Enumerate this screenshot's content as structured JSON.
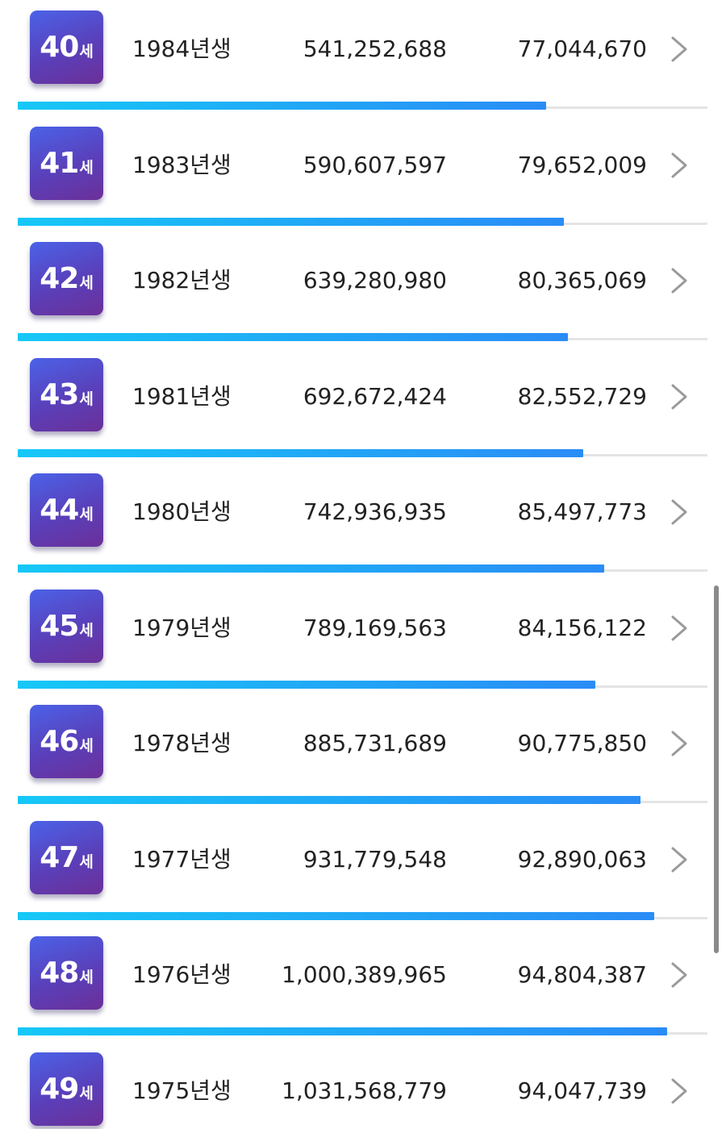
{
  "rows": [
    {
      "age": "40",
      "unit": "세",
      "birth_year": "1984년생",
      "total": "541,252,688",
      "annual": "77,044,670",
      "progress": 0.766
    },
    {
      "age": "41",
      "unit": "세",
      "birth_year": "1983년생",
      "total": "590,607,597",
      "annual": "79,652,009",
      "progress": 0.792
    },
    {
      "age": "42",
      "unit": "세",
      "birth_year": "1982년생",
      "total": "639,280,980",
      "annual": "80,365,069",
      "progress": 0.798
    },
    {
      "age": "43",
      "unit": "세",
      "birth_year": "1981년생",
      "total": "692,672,424",
      "annual": "82,552,729",
      "progress": 0.82
    },
    {
      "age": "44",
      "unit": "세",
      "birth_year": "1980년생",
      "total": "742,936,935",
      "annual": "85,497,773",
      "progress": 0.85
    },
    {
      "age": "45",
      "unit": "세",
      "birth_year": "1979년생",
      "total": "789,169,563",
      "annual": "84,156,122",
      "progress": 0.837
    },
    {
      "age": "46",
      "unit": "세",
      "birth_year": "1978년생",
      "total": "885,731,689",
      "annual": "90,775,850",
      "progress": 0.903
    },
    {
      "age": "47",
      "unit": "세",
      "birth_year": "1977년생",
      "total": "931,779,548",
      "annual": "92,890,063",
      "progress": 0.923
    },
    {
      "age": "48",
      "unit": "세",
      "birth_year": "1976년생",
      "total": "1,000,389,965",
      "annual": "94,804,387",
      "progress": 0.942
    },
    {
      "age": "49",
      "unit": "세",
      "birth_year": "1975년생",
      "total": "1,031,568,779",
      "annual": "94,047,739",
      "progress": null
    }
  ],
  "icons": {
    "row_action": "chevron-right-icon"
  },
  "colors": {
    "badge_gradient_start": "#4b62e8",
    "badge_gradient_end": "#6b3099",
    "bar_gradient_start": "#16c8f7",
    "bar_gradient_end": "#2a8cf6",
    "text": "#222222",
    "chevron": "#9a9a9a",
    "track": "#e4e4e4"
  }
}
